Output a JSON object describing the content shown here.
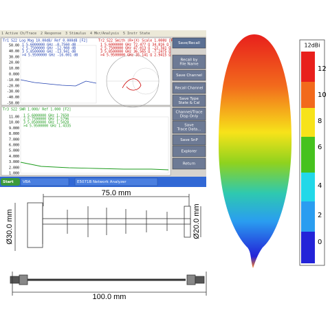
{
  "analyzer": {
    "menu": [
      "1 Active Ch/Trace",
      "2 Response",
      "3 Stimulus",
      "4 Mkr/Analysis",
      "5 Instr State"
    ],
    "trace1": {
      "header": "Tr1 S22 Log Mag 10.00dB/ Ref 0.000dB [F2]",
      "yticks": [
        "50.00",
        "40.00",
        "30.00",
        "20.00",
        "10.00",
        "0.000",
        "-10.00",
        "-20.00",
        "-30.00",
        "-40.00",
        "-50.00"
      ],
      "markers": [
        "1  5.6000000 GHz  -8.7560 dB",
        "2  5.7500000 GHz -12.908 dB",
        "3  5.8500000 GHz -13.941 dB",
        ">4  5.9500000 GHz -16.001 dB"
      ]
    },
    "trace2": {
      "header": "Tr2 S22 Smith (R+jX) Scale 1.000U [F2]",
      "markers": [
        "1  5.6000000 GHz  72.477 Ω  34.816 Ω",
        "2  5.7500000 GHz  47.013 Ω -22.341 Ω",
        "3  5.8500000 GHz  36.565 Ω -7.2475 Ω",
        ">4  5.9500000 GHz  35.141 Ω  2.9415 Ω"
      ]
    },
    "trace3": {
      "header": "Tr3 S22 SWR 1.000/ Ref 1.000 [F2]",
      "yticks": [
        "11.00",
        "10.00",
        "9.000",
        "8.000",
        "7.000",
        "6.000",
        "5.000",
        "4.000",
        "3.000",
        "2.000",
        "1.000"
      ],
      "markers": [
        "1  5.6000000 GHz  1.7650",
        "2  5.7500000 GHz  1.5796",
        "3  5.8500000 GHz  1.5028",
        ">4  5.9500000 GHz  1.4335"
      ]
    },
    "softkeys": [
      [
        "Save/Recall"
      ],
      [
        "Recall by",
        "File Name"
      ],
      [
        "Save Channel"
      ],
      [
        "Recall Channel"
      ],
      [
        "Save Type",
        "State & Cal"
      ],
      [
        "Channel/Trace",
        "Disp Only"
      ],
      [
        "Save",
        "Trace Data..."
      ],
      [
        "Save SnP"
      ],
      [
        "Explorer"
      ],
      [
        "Return"
      ]
    ],
    "taskbar": [
      "Start",
      "VBA",
      "E5071B Network Analyzer"
    ]
  },
  "drawing": {
    "length": "75.0 mm",
    "diameter_reflector": "Ø30.0 mm",
    "diameter_director": "Ø20.0 mm",
    "cable_length": "100.0 mm"
  },
  "colorbar": {
    "title": "12dBi",
    "labels": [
      "12",
      "10",
      "8",
      "6",
      "4",
      "2",
      "0"
    ]
  }
}
